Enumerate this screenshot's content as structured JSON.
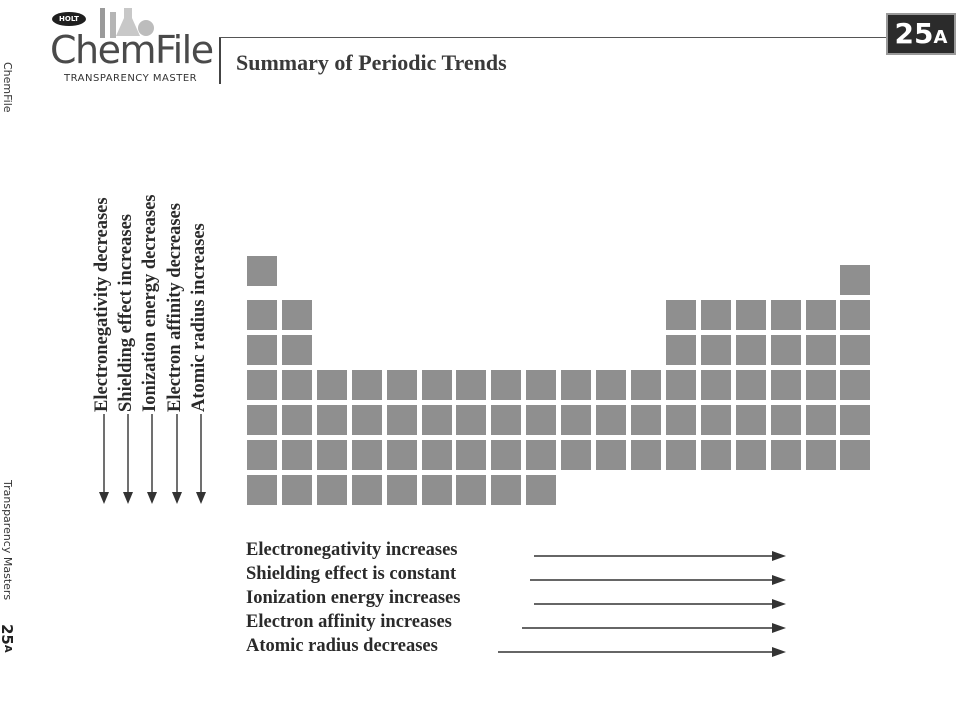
{
  "sidebar": {
    "top_text": "ChemFile",
    "bottom_text": "Transparency Masters",
    "number": "25",
    "number_suffix": "A"
  },
  "header": {
    "badge": "HOLT",
    "brand": "ChemFile",
    "subtitle": "TRANSPARENCY MASTER",
    "title": "Summary of Periodic Trends",
    "number": "25",
    "number_suffix": "A"
  },
  "vertical_trends": [
    "Electronegativity decreases",
    "Shielding effect increases",
    "Ionization energy decreases",
    "Electron affinity decreases",
    "Atomic radius increases"
  ],
  "horizontal_trends": [
    "Electronegativity increases",
    "Shielding effect is constant",
    "Ionization energy increases",
    "Electron affinity increases",
    "Atomic radius decreases"
  ],
  "colors": {
    "cell": "#8f8f8f",
    "text": "#2a2a2a"
  }
}
